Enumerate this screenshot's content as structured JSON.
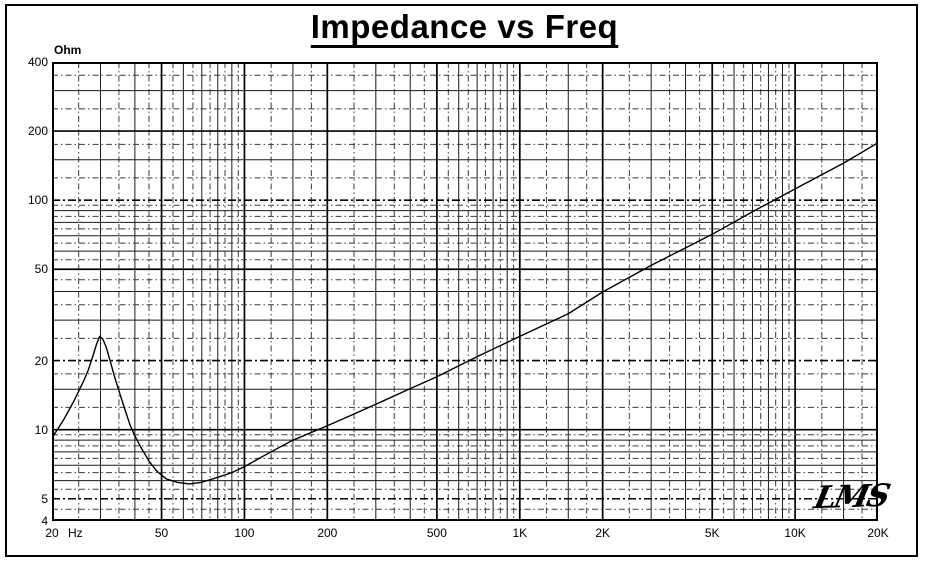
{
  "page": {
    "title": "Impedance vs Freq"
  },
  "logo": {
    "text": "LMS"
  },
  "chart_data": {
    "type": "line",
    "title": "Impedance vs Freq",
    "xlabel": "Hz",
    "ylabel": "Ohm",
    "x_scale": "log",
    "y_scale": "log",
    "xlim": [
      20,
      20000
    ],
    "ylim": [
      4,
      400
    ],
    "grid": "dense log-log engineering grid, solid minors at mantissas 1,1.5,2,3,4,5,6,7,8,9 and dash-dot minors at 1.25,1.75,2.5,3.5,4.5,5.5,6.5,7.5,8.5,9.5",
    "legend": "none",
    "x_ticks": [
      {
        "value": 20,
        "label": "20"
      },
      {
        "value": 50,
        "label": "50"
      },
      {
        "value": 100,
        "label": "100"
      },
      {
        "value": 200,
        "label": "200"
      },
      {
        "value": 500,
        "label": "500"
      },
      {
        "value": 1000,
        "label": "1K"
      },
      {
        "value": 2000,
        "label": "2K"
      },
      {
        "value": 5000,
        "label": "5K"
      },
      {
        "value": 10000,
        "label": "10K"
      },
      {
        "value": 20000,
        "label": "20K"
      }
    ],
    "x_unit": "Hz",
    "y_ticks": [
      {
        "value": 400,
        "label": "400"
      },
      {
        "value": 200,
        "label": "200"
      },
      {
        "value": 100,
        "label": "100"
      },
      {
        "value": 50,
        "label": "50"
      },
      {
        "value": 20,
        "label": "20"
      },
      {
        "value": 10,
        "label": "10"
      },
      {
        "value": 5,
        "label": "5"
      },
      {
        "value": 4,
        "label": "4"
      }
    ],
    "grid_spec": {
      "solid_mantissas": [
        1,
        1.5,
        2,
        3,
        4,
        5,
        6,
        7,
        8,
        9
      ],
      "dashdot_mantissas": [
        1.25,
        1.75,
        2.5,
        3.5,
        4.5,
        5.5,
        6.5,
        7.5,
        8.5,
        9.5
      ],
      "y_emphasis_solid": [
        200,
        50,
        10
      ],
      "y_emphasis_dashdot": [
        100,
        20,
        5
      ],
      "x_emphasis_solid": [
        50,
        100,
        200,
        500,
        1000,
        2000,
        5000,
        10000
      ]
    },
    "series": [
      {
        "name": "Impedance",
        "points": [
          [
            20,
            9.2
          ],
          [
            22,
            11.0
          ],
          [
            24,
            13.3
          ],
          [
            26,
            16.2
          ],
          [
            27,
            18.0
          ],
          [
            28,
            20.5
          ],
          [
            29,
            23.5
          ],
          [
            29.8,
            25.5
          ],
          [
            30.6,
            24.8
          ],
          [
            31.5,
            22.8
          ],
          [
            32.5,
            20.0
          ],
          [
            34,
            16.5
          ],
          [
            35.5,
            14.0
          ],
          [
            37,
            12.0
          ],
          [
            38.5,
            10.4
          ],
          [
            40,
            9.4
          ],
          [
            42,
            8.4
          ],
          [
            45,
            7.3
          ],
          [
            48,
            6.6
          ],
          [
            52,
            6.1
          ],
          [
            57,
            5.9
          ],
          [
            63,
            5.8
          ],
          [
            70,
            5.9
          ],
          [
            80,
            6.2
          ],
          [
            90,
            6.5
          ],
          [
            100,
            6.9
          ],
          [
            120,
            7.8
          ],
          [
            150,
            9.0
          ],
          [
            200,
            10.4
          ],
          [
            250,
            11.7
          ],
          [
            300,
            12.9
          ],
          [
            400,
            15.1
          ],
          [
            500,
            17.0
          ],
          [
            700,
            20.8
          ],
          [
            1000,
            25.5
          ],
          [
            1500,
            32.0
          ],
          [
            2000,
            39.8
          ],
          [
            3000,
            52.0
          ],
          [
            4000,
            62.0
          ],
          [
            5000,
            71.0
          ],
          [
            7000,
            89.0
          ],
          [
            10000,
            112.0
          ],
          [
            15000,
            145.0
          ],
          [
            20000,
            178.0
          ]
        ]
      }
    ],
    "curve_features": {
      "resonance_peak": {
        "freq_hz": 30,
        "impedance_ohm": 25.5
      },
      "minimum": {
        "freq_hz": 60,
        "impedance_ohm": 5.8
      },
      "impedance_at_20hz": 9.2,
      "impedance_at_20khz": 178
    },
    "colors": {
      "line": "#000000",
      "grid_solid": "#1a1a1a",
      "grid_dashdot": "#3a3a3a",
      "border": "#000000",
      "background": "#ffffff"
    }
  }
}
